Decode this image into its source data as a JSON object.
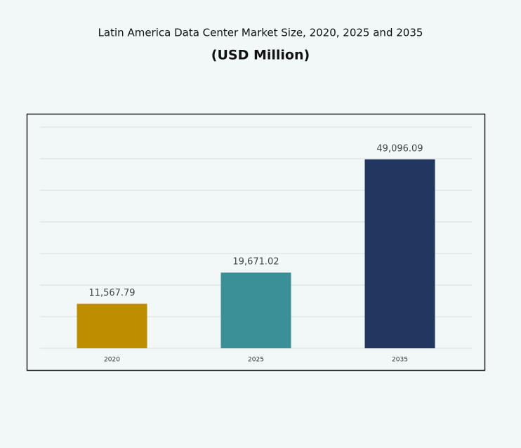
{
  "chart_data": {
    "type": "bar",
    "title": "Latin America Data Center Market Size, 2020, 2025 and 2035",
    "subtitle": "(USD Million)",
    "categories": [
      "2020",
      "2025",
      "2035"
    ],
    "values": [
      11567.79,
      19671.02,
      49096.09
    ],
    "value_labels": [
      "11,567.79",
      "19,671.02",
      "49,096.09"
    ],
    "colors": [
      "#bf8e00",
      "#3b9097",
      "#21375f"
    ],
    "ylim": [
      0,
      57500
    ],
    "grid": true
  }
}
